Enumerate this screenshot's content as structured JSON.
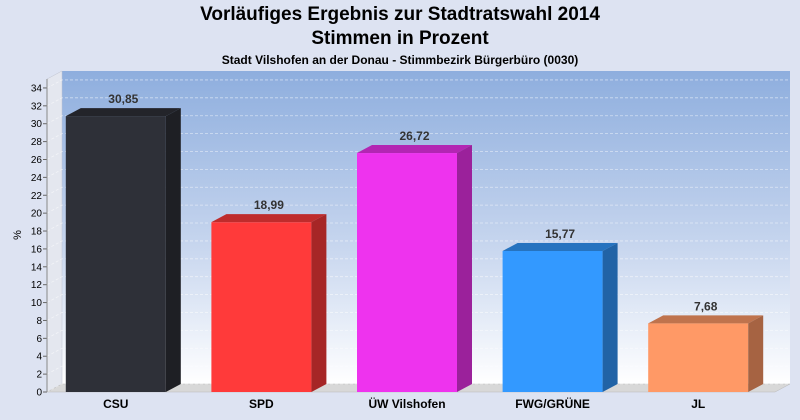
{
  "header": {
    "title": "Vorläufiges Ergebnis zur Stadtratswahl 2014",
    "subtitle": "Stimmen in Prozent",
    "caption": "Stadt Vilshofen an der Donau - Stimmbezirk Bürgerbüro (0030)"
  },
  "chart_data": {
    "type": "bar",
    "title": "Vorläufiges Ergebnis zur Stadtratswahl 2014",
    "subtitle": "Stimmen in Prozent",
    "xlabel": "",
    "ylabel": "%",
    "ylim": [
      0,
      35
    ],
    "yticks": [
      0,
      2,
      4,
      6,
      8,
      10,
      12,
      14,
      16,
      18,
      20,
      22,
      24,
      26,
      28,
      30,
      32,
      34
    ],
    "categories": [
      "CSU",
      "SPD",
      "ÜW Vilshofen",
      "FWG/GRÜNE",
      "JL"
    ],
    "values": [
      30.85,
      18.99,
      26.72,
      15.77,
      7.68
    ],
    "value_labels": [
      "30,85",
      "18,99",
      "26,72",
      "15,77",
      "7,68"
    ],
    "colors": [
      "#2e3038",
      "#ff3a3a",
      "#ee33ee",
      "#3399ff",
      "#ff9966"
    ],
    "grid": true,
    "legend": "none"
  }
}
